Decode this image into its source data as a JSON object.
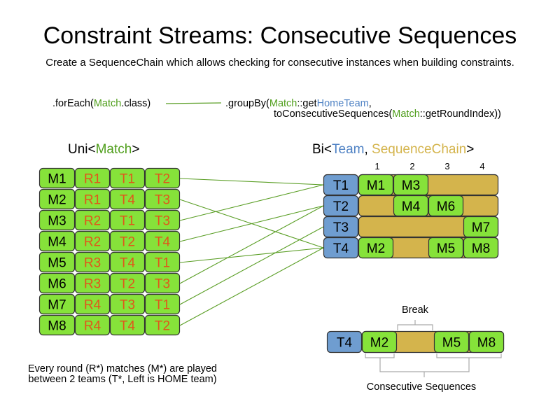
{
  "title": "Constraint Streams: Consecutive Sequences",
  "subtitle": "Create a SequenceChain which allows checking for consecutive instances when building constraints.",
  "code": {
    "forEach": [
      ".forEach(",
      "Match",
      ".class)"
    ],
    "groupBy_line1": [
      ".groupBy(",
      "Match",
      "::get",
      "HomeTeam",
      ","
    ],
    "groupBy_line2": [
      "toConsecutiveSequences(",
      "Match",
      "::getRoundIndex))"
    ]
  },
  "uni_label": [
    "Uni<",
    "Match",
    ">"
  ],
  "bi_label": [
    "Bi<",
    "Team",
    ", ",
    "SequenceChain",
    ">"
  ],
  "matches": [
    {
      "id": "M1",
      "round": "R1",
      "home": "T1",
      "away": "T2"
    },
    {
      "id": "M2",
      "round": "R1",
      "home": "T4",
      "away": "T3"
    },
    {
      "id": "M3",
      "round": "R2",
      "home": "T1",
      "away": "T3"
    },
    {
      "id": "M4",
      "round": "R2",
      "home": "T2",
      "away": "T4"
    },
    {
      "id": "M5",
      "round": "R3",
      "home": "T4",
      "away": "T1"
    },
    {
      "id": "M6",
      "round": "R3",
      "home": "T2",
      "away": "T3"
    },
    {
      "id": "M7",
      "round": "R4",
      "home": "T3",
      "away": "T1"
    },
    {
      "id": "M8",
      "round": "R4",
      "home": "T4",
      "away": "T2"
    }
  ],
  "round_headers": [
    "1",
    "2",
    "3",
    "4"
  ],
  "teams": [
    {
      "id": "T1",
      "rounds": [
        "M1",
        "M3",
        "",
        ""
      ]
    },
    {
      "id": "T2",
      "rounds": [
        "",
        "M4",
        "M6",
        ""
      ]
    },
    {
      "id": "T3",
      "rounds": [
        "",
        "",
        "",
        "M7"
      ]
    },
    {
      "id": "T4",
      "rounds": [
        "M2",
        "",
        "M5",
        "M8"
      ]
    }
  ],
  "example": {
    "team": "T4",
    "rounds": [
      "M2",
      "",
      "M5",
      "M8"
    ],
    "break_label": "Break",
    "sequences_label": "Consecutive Sequences"
  },
  "footnote": [
    "Every round (R*) matches (M*) are played",
    "between 2 teams (T*, Left is HOME team)"
  ],
  "colors": {
    "match_green": "#86e23a",
    "team_blue": "#6f9dd0",
    "chain_tan": "#d4b44c",
    "round_orange": "#e0571b",
    "text_green": "#4f9e1b",
    "text_blue": "#4f82c4",
    "text_gold": "#d4b44c",
    "line_green": "#5a9e25",
    "bracket_gray": "#aaaaaa"
  }
}
